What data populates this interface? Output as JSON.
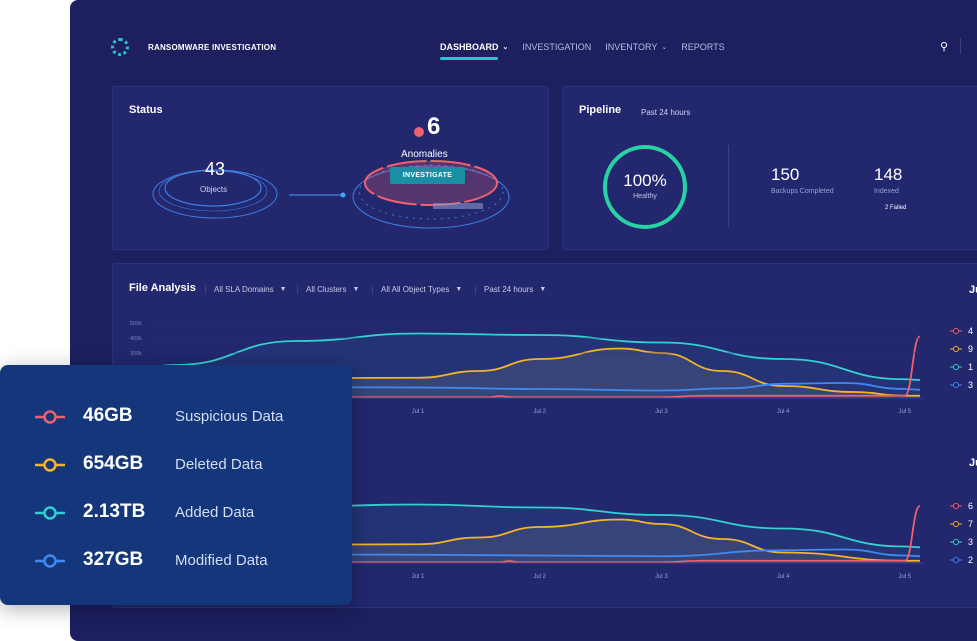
{
  "header": {
    "app_title": "RANSOMWARE INVESTIGATION",
    "nav": [
      {
        "label": "DASHBOARD",
        "active": true,
        "dropdown": true
      },
      {
        "label": "INVESTIGATION",
        "dropdown": false
      },
      {
        "label": "INVENTORY",
        "dropdown": true
      },
      {
        "label": "REPORTS",
        "dropdown": false
      }
    ],
    "icons": [
      "logo-icon",
      "search-icon"
    ]
  },
  "status": {
    "title": "Status",
    "objects_count": "43",
    "objects_label": "Objects",
    "anomalies_count": "6",
    "anomalies_label": "Anomalies",
    "investigate_label": "INVESTIGATE",
    "alert_color": "#f0606d"
  },
  "pipeline": {
    "title": "Pipeline",
    "period": "Past 24 hours",
    "health_percent": "100%",
    "health_label": "Healthy",
    "health_value": 100,
    "backups_count": "150",
    "backups_label": "Backups Completed",
    "indexed_count": "148",
    "indexed_label": "Indexed",
    "failed_label": "2 Failed",
    "ring_color": "#27d3a2"
  },
  "file_analysis": {
    "title": "File Analysis",
    "filters": [
      "All SLA Domains",
      "All Clusters",
      "All All Object Types",
      "Past 24 hours"
    ],
    "side_headers": [
      "Ju",
      "Ju"
    ],
    "legend_1": [
      "4",
      "9",
      "1",
      "3"
    ],
    "legend_2": [
      "6",
      "7",
      "3",
      "2"
    ]
  },
  "summary": {
    "items": [
      {
        "value": "46GB",
        "label": "Suspicious Data",
        "color": "#f0606d"
      },
      {
        "value": "654GB",
        "label": "Deleted Data",
        "color": "#f5b32a"
      },
      {
        "value": "2.13TB",
        "label": "Added Data",
        "color": "#33d0d0"
      },
      {
        "value": "327GB",
        "label": "Modified Data",
        "color": "#3f8af0"
      }
    ]
  },
  "chart_data": [
    {
      "type": "line",
      "y_ticks": [
        "500k",
        "400k",
        "300k"
      ],
      "x_ticks": [
        "Jul 1",
        "Jul 2",
        "Jul 3",
        "Jul 4",
        "Jul 5"
      ],
      "ylim": [
        0,
        500000
      ],
      "grid": false,
      "series": [
        {
          "color": "#33d0d0",
          "points": [
            [
              "Jun 28 15:00",
              170000
            ],
            [
              "Jun 29 00:00",
              220000
            ],
            [
              "Jun 30 00:00",
              380000
            ],
            [
              "Jul 1 00:00",
              430000
            ],
            [
              "Jul 2 00:00",
              420000
            ],
            [
              "Jul 3 00:00",
              370000
            ],
            [
              "Jul 4 00:00",
              260000
            ],
            [
              "Jul 5 00:00",
              125000
            ],
            [
              "Jul 5 03:00",
              120000
            ]
          ]
        },
        {
          "color": "#f5b32a",
          "points": [
            [
              "Jun 29 00:00",
              130000
            ],
            [
              "Jul 1 00:00",
              135000
            ],
            [
              "Jul 1 12:00",
              180000
            ],
            [
              "Jul 2 00:00",
              260000
            ],
            [
              "Jul 2 16:00",
              330000
            ],
            [
              "Jul 3 00:00",
              300000
            ],
            [
              "Jul 3 12:00",
              180000
            ],
            [
              "Jul 4 00:00",
              80000
            ],
            [
              "Jul 4 14:00",
              40000
            ],
            [
              "Jul 5 00:00",
              15000
            ],
            [
              "Jul 5 03:00",
              15000
            ]
          ]
        },
        {
          "color": "#3f8af0",
          "points": [
            [
              "Jun 29 00:00",
              75000
            ],
            [
              "Jul 1 00:00",
              70000
            ],
            [
              "Jul 2 00:00",
              60000
            ],
            [
              "Jul 3 00:00",
              50000
            ],
            [
              "Jul 3 14:00",
              65000
            ],
            [
              "Jul 4 00:00",
              95000
            ],
            [
              "Jul 4 12:00",
              100000
            ],
            [
              "Jul 5 00:00",
              60000
            ],
            [
              "Jul 5 03:00",
              55000
            ]
          ]
        },
        {
          "color": "#f0606d",
          "points": [
            [
              "Jun 29 00:00",
              5000
            ],
            [
              "Jul 1 00:00",
              5000
            ],
            [
              "Jul 1 14:00",
              5000
            ],
            [
              "Jul 1 16:00",
              12000
            ],
            [
              "Jul 1 19:00",
              5000
            ],
            [
              "Jul 3 00:00",
              5000
            ],
            [
              "Jul 3 08:00",
              15000
            ],
            [
              "Jul 5 00:00",
              15000
            ],
            [
              "Jul 5 03:00",
              410000
            ]
          ]
        }
      ]
    },
    {
      "type": "line",
      "x_ticks": [
        "Jul 1",
        "Jul 2",
        "Jul 3",
        "Jul 4",
        "Jul 5"
      ],
      "ylim": [
        0,
        500000
      ],
      "grid": false,
      "series": [
        {
          "color": "#33d0d0",
          "points": [
            [
              "Jun 29 00:00",
              330000
            ],
            [
              "Jul 1 00:00",
              390000
            ],
            [
              "Jul 2 00:00",
              370000
            ],
            [
              "Jul 3 00:00",
              320000
            ],
            [
              "Jul 4 00:00",
              230000
            ],
            [
              "Jul 5 00:00",
              110000
            ],
            [
              "Jul 5 03:00",
              105000
            ]
          ]
        },
        {
          "color": "#f5b32a",
          "points": [
            [
              "Jun 29 00:00",
              120000
            ],
            [
              "Jul 1 00:00",
              125000
            ],
            [
              "Jul 1 12:00",
              170000
            ],
            [
              "Jul 2 00:00",
              240000
            ],
            [
              "Jul 2 16:00",
              290000
            ],
            [
              "Jul 3 00:00",
              260000
            ],
            [
              "Jul 3 12:00",
              160000
            ],
            [
              "Jul 4 00:00",
              70000
            ],
            [
              "Jul 5 00:00",
              15000
            ],
            [
              "Jul 5 03:00",
              15000
            ]
          ]
        },
        {
          "color": "#3f8af0",
          "points": [
            [
              "Jun 29 00:00",
              60000
            ],
            [
              "Jul 1 00:00",
              55000
            ],
            [
              "Jul 3 00:00",
              45000
            ],
            [
              "Jul 4 00:00",
              85000
            ],
            [
              "Jul 4 12:00",
              90000
            ],
            [
              "Jul 5 00:00",
              50000
            ],
            [
              "Jul 5 03:00",
              45000
            ]
          ]
        },
        {
          "color": "#f0606d",
          "points": [
            [
              "Jun 29 00:00",
              5000
            ],
            [
              "Jul 1 16:00",
              5000
            ],
            [
              "Jul 1 18:00",
              12000
            ],
            [
              "Jul 1 20:00",
              5000
            ],
            [
              "Jul 3 00:00",
              5000
            ],
            [
              "Jul 3 08:00",
              15000
            ],
            [
              "Jul 5 00:00",
              15000
            ],
            [
              "Jul 5 03:00",
              380000
            ]
          ]
        }
      ]
    }
  ]
}
